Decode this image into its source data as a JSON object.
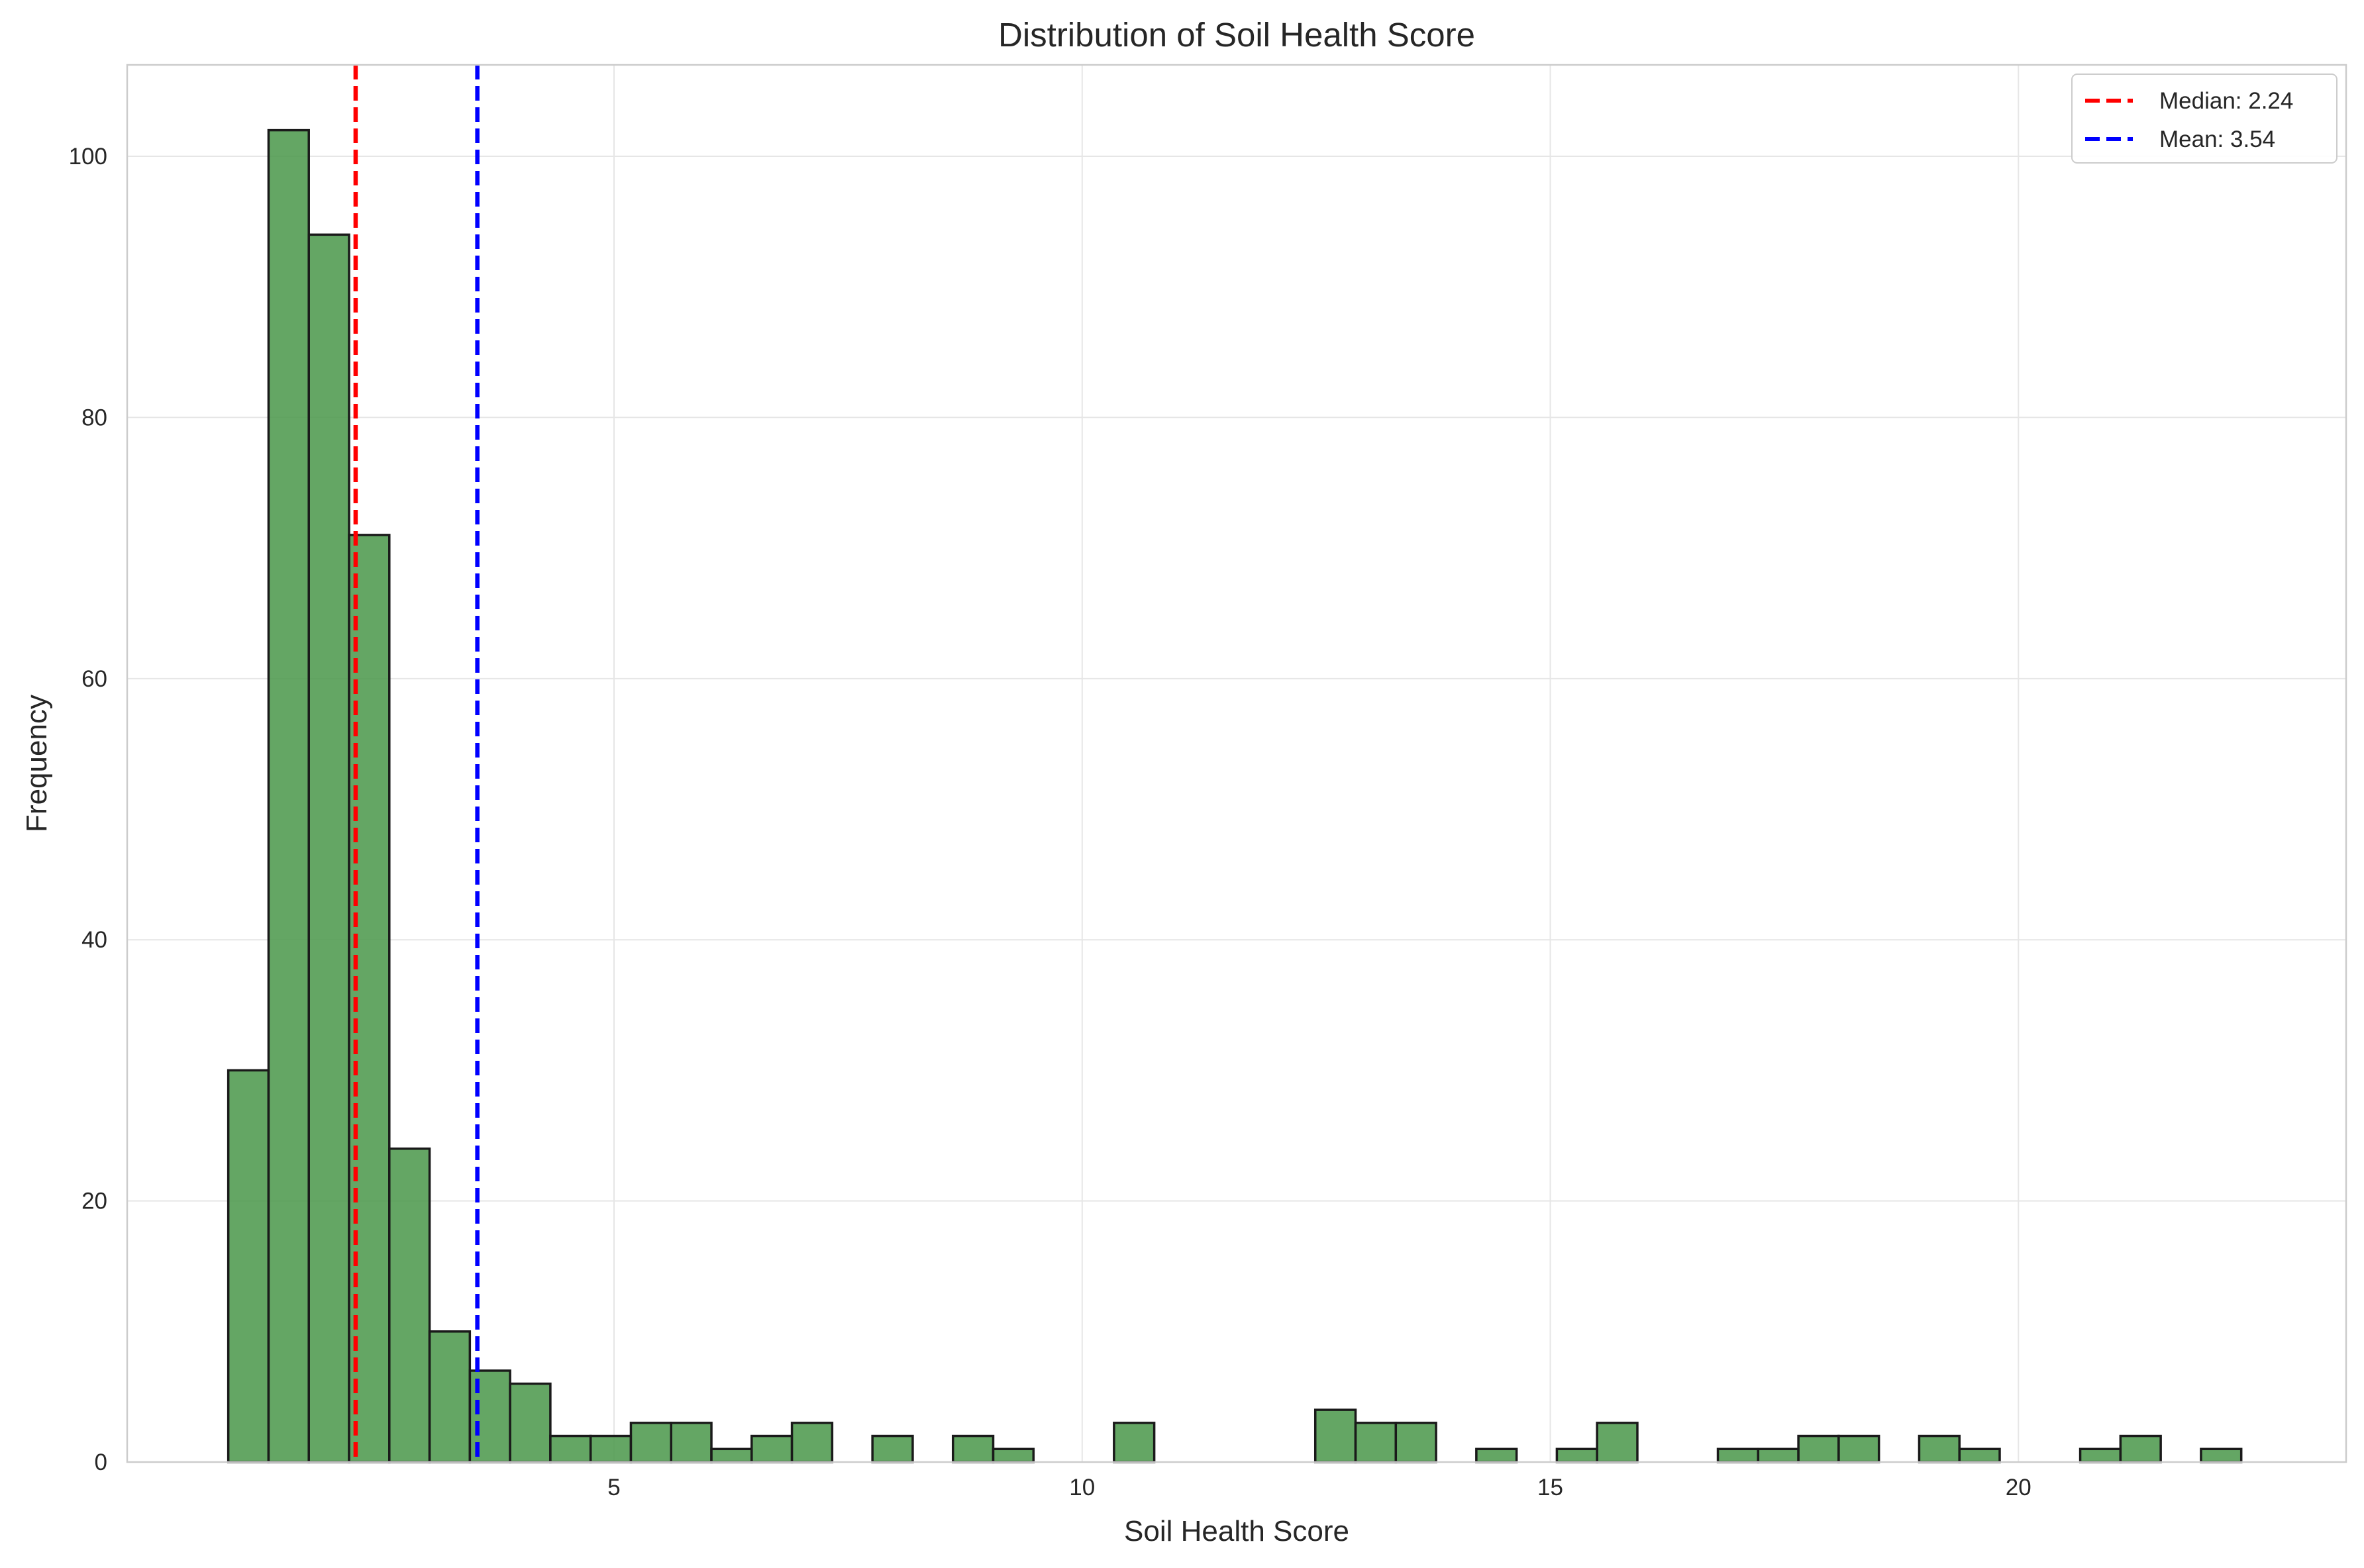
{
  "chart_data": {
    "type": "bar",
    "subtype": "histogram",
    "title": "Distribution of Soil Health Score",
    "xlabel": "Soil Health Score",
    "ylabel": "Frequency",
    "xlim": [
      -0.2,
      23.5
    ],
    "ylim": [
      0,
      107
    ],
    "xticks": [
      5,
      10,
      15,
      20
    ],
    "yticks": [
      0,
      20,
      40,
      60,
      80,
      100
    ],
    "grid": true,
    "legend_position": "top-right",
    "bin_start": 0.88,
    "bin_width": 0.43,
    "values": [
      30,
      102,
      94,
      71,
      24,
      10,
      7,
      6,
      2,
      2,
      3,
      3,
      1,
      2,
      3,
      0,
      2,
      0,
      2,
      1,
      0,
      0,
      3,
      0,
      0,
      0,
      0,
      4,
      3,
      3,
      0,
      1,
      0,
      1,
      3,
      0,
      0,
      1,
      1,
      2,
      2,
      0,
      2,
      1,
      0,
      0,
      1,
      2,
      0,
      1
    ],
    "series": [
      {
        "name": "Frequency",
        "color": "#4f9a4f",
        "edge_color": "#1a1a1a"
      }
    ],
    "reference_lines": [
      {
        "label": "Median: 2.24",
        "value": 2.24,
        "color": "#ff0000",
        "style": "dashed"
      },
      {
        "label": "Mean: 3.54",
        "value": 3.54,
        "color": "#0000ff",
        "style": "dashed"
      }
    ]
  }
}
